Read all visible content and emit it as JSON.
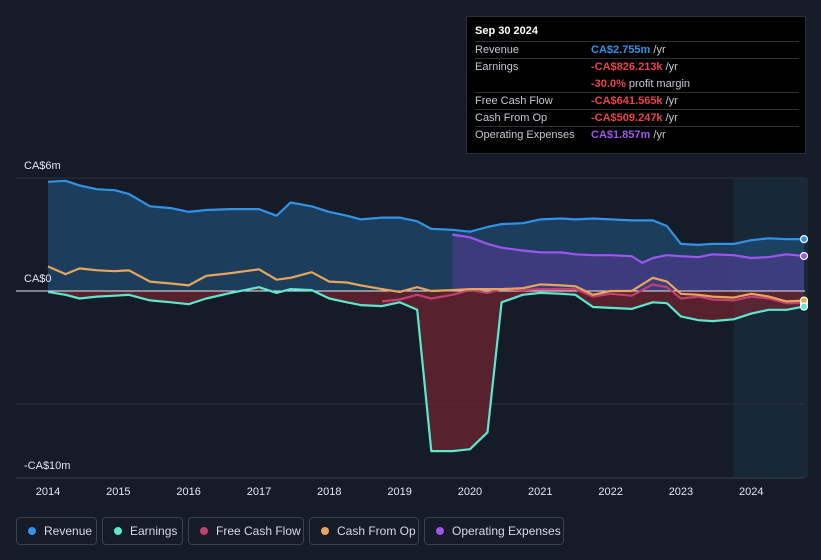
{
  "chart_data": {
    "type": "area",
    "x_ticks": [
      "2014",
      "2015",
      "2016",
      "2017",
      "2018",
      "2019",
      "2020",
      "2021",
      "2022",
      "2023",
      "2024"
    ],
    "y_labels": {
      "top": "CA$6m",
      "zero": "CA$0",
      "bottom": "-CA$10m"
    },
    "ylim": [
      -10,
      6
    ],
    "units": "CA$ millions",
    "series": [
      {
        "name": "Revenue",
        "color": "#2f94e8",
        "points": [
          [
            2014.0,
            5.8
          ],
          [
            2014.25,
            5.85
          ],
          [
            2014.45,
            5.6
          ],
          [
            2014.7,
            5.4
          ],
          [
            2014.95,
            5.35
          ],
          [
            2015.15,
            5.15
          ],
          [
            2015.45,
            4.5
          ],
          [
            2015.75,
            4.4
          ],
          [
            2016.0,
            4.2
          ],
          [
            2016.25,
            4.3
          ],
          [
            2016.6,
            4.35
          ],
          [
            2016.8,
            4.35
          ],
          [
            2017.0,
            4.35
          ],
          [
            2017.25,
            4.0
          ],
          [
            2017.45,
            4.7
          ],
          [
            2017.75,
            4.5
          ],
          [
            2018.0,
            4.2
          ],
          [
            2018.25,
            4.0
          ],
          [
            2018.45,
            3.8
          ],
          [
            2018.75,
            3.9
          ],
          [
            2019.0,
            3.9
          ],
          [
            2019.25,
            3.7
          ],
          [
            2019.45,
            3.3
          ],
          [
            2019.75,
            3.25
          ],
          [
            2020.0,
            3.15
          ],
          [
            2020.25,
            3.4
          ],
          [
            2020.45,
            3.55
          ],
          [
            2020.75,
            3.6
          ],
          [
            2021.0,
            3.8
          ],
          [
            2021.3,
            3.85
          ],
          [
            2021.5,
            3.8
          ],
          [
            2021.75,
            3.85
          ],
          [
            2022.0,
            3.8
          ],
          [
            2022.3,
            3.75
          ],
          [
            2022.6,
            3.75
          ],
          [
            2022.8,
            3.45
          ],
          [
            2023.0,
            2.5
          ],
          [
            2023.25,
            2.45
          ],
          [
            2023.45,
            2.5
          ],
          [
            2023.75,
            2.5
          ],
          [
            2024.0,
            2.7
          ],
          [
            2024.25,
            2.8
          ],
          [
            2024.5,
            2.75
          ],
          [
            2024.75,
            2.755
          ]
        ]
      },
      {
        "name": "Earnings",
        "color": "#5ce8cc",
        "points": [
          [
            2014.0,
            -0.05
          ],
          [
            2014.25,
            -0.2
          ],
          [
            2014.45,
            -0.4
          ],
          [
            2014.7,
            -0.3
          ],
          [
            2014.95,
            -0.25
          ],
          [
            2015.15,
            -0.2
          ],
          [
            2015.45,
            -0.5
          ],
          [
            2015.75,
            -0.6
          ],
          [
            2016.0,
            -0.7
          ],
          [
            2016.25,
            -0.4
          ],
          [
            2016.6,
            -0.1
          ],
          [
            2016.8,
            0.05
          ],
          [
            2017.0,
            0.2
          ],
          [
            2017.25,
            -0.1
          ],
          [
            2017.45,
            0.1
          ],
          [
            2017.75,
            0.05
          ],
          [
            2018.0,
            -0.4
          ],
          [
            2018.25,
            -0.6
          ],
          [
            2018.45,
            -0.75
          ],
          [
            2018.75,
            -0.8
          ],
          [
            2019.0,
            -0.6
          ],
          [
            2019.25,
            -1.0
          ],
          [
            2019.45,
            -8.5
          ],
          [
            2019.75,
            -8.5
          ],
          [
            2020.0,
            -8.4
          ],
          [
            2020.25,
            -7.5
          ],
          [
            2020.45,
            -0.6
          ],
          [
            2020.75,
            -0.2
          ],
          [
            2021.0,
            -0.1
          ],
          [
            2021.3,
            -0.15
          ],
          [
            2021.5,
            -0.2
          ],
          [
            2021.75,
            -0.85
          ],
          [
            2022.0,
            -0.9
          ],
          [
            2022.3,
            -0.95
          ],
          [
            2022.6,
            -0.6
          ],
          [
            2022.8,
            -0.65
          ],
          [
            2023.0,
            -1.35
          ],
          [
            2023.25,
            -1.55
          ],
          [
            2023.45,
            -1.6
          ],
          [
            2023.75,
            -1.5
          ],
          [
            2024.0,
            -1.2
          ],
          [
            2024.25,
            -1.0
          ],
          [
            2024.5,
            -1.0
          ],
          [
            2024.75,
            -0.826
          ]
        ]
      },
      {
        "name": "Free Cash Flow",
        "color": "#c23f72",
        "points": [
          [
            2018.75,
            -0.55
          ],
          [
            2019.0,
            -0.45
          ],
          [
            2019.25,
            -0.2
          ],
          [
            2019.45,
            -0.4
          ],
          [
            2019.75,
            -0.2
          ],
          [
            2020.0,
            0.05
          ],
          [
            2020.25,
            -0.1
          ],
          [
            2020.45,
            0.1
          ],
          [
            2020.75,
            0.05
          ],
          [
            2021.0,
            0.1
          ],
          [
            2021.3,
            0.1
          ],
          [
            2021.5,
            0.1
          ],
          [
            2021.75,
            -0.3
          ],
          [
            2022.0,
            -0.15
          ],
          [
            2022.3,
            -0.25
          ],
          [
            2022.6,
            0.35
          ],
          [
            2022.8,
            0.2
          ],
          [
            2023.0,
            -0.4
          ],
          [
            2023.25,
            -0.3
          ],
          [
            2023.45,
            -0.45
          ],
          [
            2023.75,
            -0.5
          ],
          [
            2024.0,
            -0.3
          ],
          [
            2024.25,
            -0.4
          ],
          [
            2024.5,
            -0.65
          ],
          [
            2024.75,
            -0.642
          ]
        ]
      },
      {
        "name": "Cash From Op",
        "color": "#e8a55c",
        "points": [
          [
            2014.0,
            1.3
          ],
          [
            2014.25,
            0.9
          ],
          [
            2014.45,
            1.2
          ],
          [
            2014.7,
            1.1
          ],
          [
            2014.95,
            1.05
          ],
          [
            2015.15,
            1.1
          ],
          [
            2015.45,
            0.5
          ],
          [
            2015.75,
            0.4
          ],
          [
            2016.0,
            0.3
          ],
          [
            2016.25,
            0.8
          ],
          [
            2016.6,
            0.95
          ],
          [
            2016.8,
            1.05
          ],
          [
            2017.0,
            1.15
          ],
          [
            2017.25,
            0.6
          ],
          [
            2017.45,
            0.7
          ],
          [
            2017.75,
            1.0
          ],
          [
            2018.0,
            0.5
          ],
          [
            2018.25,
            0.45
          ],
          [
            2018.45,
            0.3
          ],
          [
            2018.75,
            0.1
          ],
          [
            2019.0,
            -0.05
          ],
          [
            2019.25,
            0.2
          ],
          [
            2019.45,
            0.0
          ],
          [
            2019.75,
            0.05
          ],
          [
            2020.0,
            0.1
          ],
          [
            2020.25,
            0.1
          ],
          [
            2020.45,
            0.1
          ],
          [
            2020.75,
            0.15
          ],
          [
            2021.0,
            0.35
          ],
          [
            2021.3,
            0.3
          ],
          [
            2021.5,
            0.25
          ],
          [
            2021.75,
            -0.2
          ],
          [
            2022.0,
            0.0
          ],
          [
            2022.3,
            0.0
          ],
          [
            2022.6,
            0.7
          ],
          [
            2022.8,
            0.5
          ],
          [
            2023.0,
            -0.15
          ],
          [
            2023.25,
            -0.2
          ],
          [
            2023.45,
            -0.3
          ],
          [
            2023.75,
            -0.35
          ],
          [
            2024.0,
            -0.15
          ],
          [
            2024.25,
            -0.3
          ],
          [
            2024.5,
            -0.55
          ],
          [
            2024.75,
            -0.509
          ]
        ]
      },
      {
        "name": "Operating Expenses",
        "color": "#9d56f0",
        "points": [
          [
            2019.75,
            3.0
          ],
          [
            2020.0,
            2.85
          ],
          [
            2020.25,
            2.5
          ],
          [
            2020.45,
            2.3
          ],
          [
            2020.75,
            2.15
          ],
          [
            2021.0,
            2.05
          ],
          [
            2021.3,
            2.05
          ],
          [
            2021.5,
            1.95
          ],
          [
            2021.75,
            1.9
          ],
          [
            2022.0,
            1.9
          ],
          [
            2022.3,
            1.85
          ],
          [
            2022.45,
            1.5
          ],
          [
            2022.6,
            1.75
          ],
          [
            2022.8,
            1.9
          ],
          [
            2023.0,
            1.85
          ],
          [
            2023.25,
            1.8
          ],
          [
            2023.45,
            1.95
          ],
          [
            2023.75,
            1.9
          ],
          [
            2024.0,
            1.75
          ],
          [
            2024.25,
            1.8
          ],
          [
            2024.5,
            1.95
          ],
          [
            2024.75,
            1.857
          ]
        ]
      }
    ]
  },
  "tooltip": {
    "date": "Sep 30 2024",
    "rows": [
      {
        "label": "Revenue",
        "value": "CA$2.755m",
        "unit": " /yr",
        "color": "#2f94e8"
      },
      {
        "label": "Earnings",
        "value": "-CA$826.213k",
        "unit": " /yr",
        "color": "#e8424a"
      },
      {
        "label": "Free Cash Flow",
        "value": "-CA$641.565k",
        "unit": " /yr",
        "color": "#e8424a"
      },
      {
        "label": "Cash From Op",
        "value": "-CA$509.247k",
        "unit": " /yr",
        "color": "#e8424a"
      },
      {
        "label": "Operating Expenses",
        "value": "CA$1.857m",
        "unit": " /yr",
        "color": "#9d56f0"
      }
    ],
    "margin_value": "-30.0%",
    "margin_label": " profit margin",
    "margin_color": "#e8424a"
  },
  "legend": [
    {
      "label": "Revenue",
      "color": "#2f94e8"
    },
    {
      "label": "Earnings",
      "color": "#5ce8cc"
    },
    {
      "label": "Free Cash Flow",
      "color": "#c23f72"
    },
    {
      "label": "Cash From Op",
      "color": "#e8a55c"
    },
    {
      "label": "Operating Expenses",
      "color": "#9d56f0"
    }
  ]
}
